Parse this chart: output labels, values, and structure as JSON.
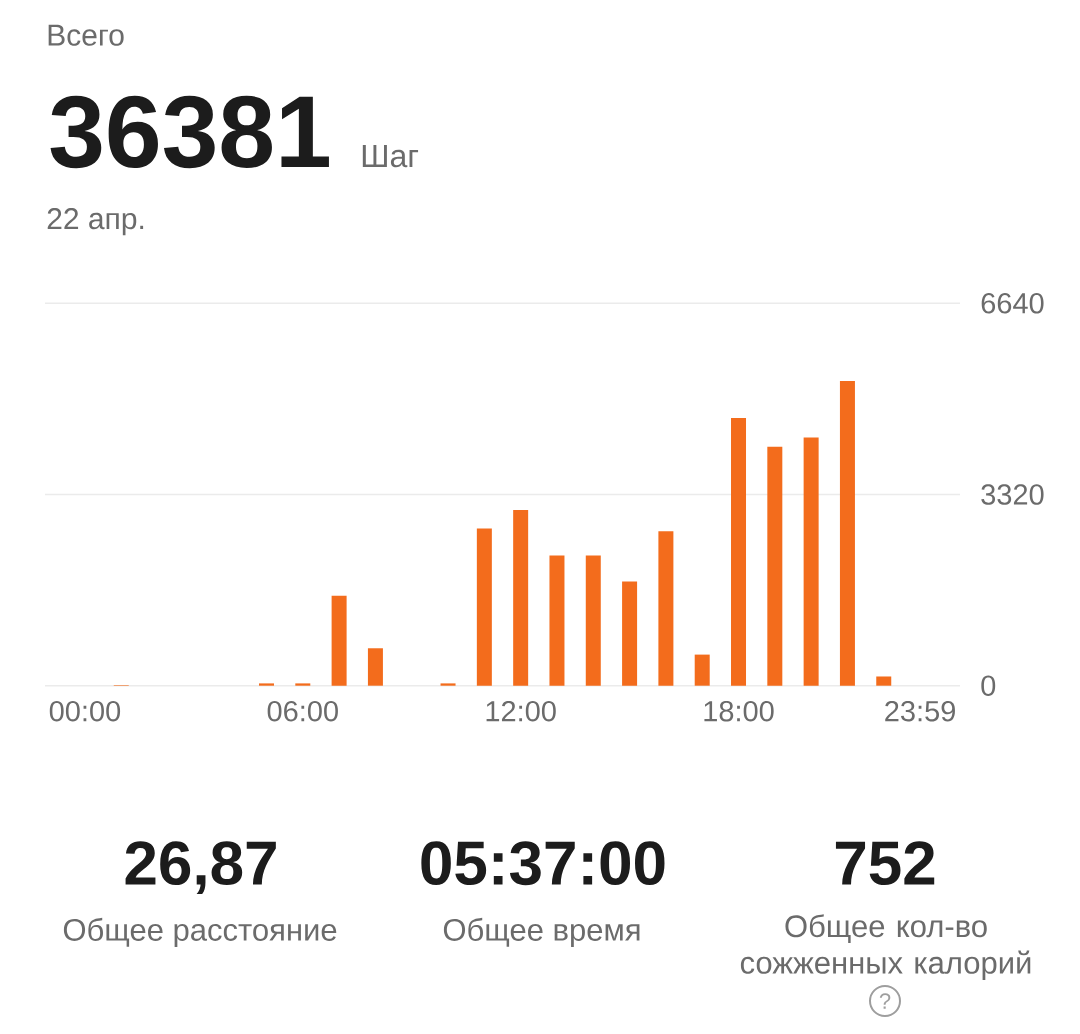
{
  "chart_data": {
    "type": "bar",
    "title": "Всего",
    "subtitle": "22 апр.",
    "categories": [
      "00:00",
      null,
      null,
      null,
      null,
      null,
      "06:00",
      null,
      null,
      null,
      null,
      null,
      "12:00",
      null,
      null,
      null,
      null,
      null,
      "18:00",
      null,
      null,
      null,
      null,
      "23:59"
    ],
    "values": [
      0,
      10,
      0,
      0,
      0,
      40,
      40,
      1560,
      650,
      0,
      40,
      2730,
      3050,
      2260,
      2260,
      1810,
      2680,
      540,
      4650,
      4150,
      4310,
      5290,
      160,
      0
    ],
    "color": "#f36c1c",
    "ylim": [
      0,
      6640
    ],
    "yticks": [
      0,
      3320,
      6640
    ],
    "grid": "y",
    "annotations": [
      "36381",
      "Шаг",
      "26,87",
      "Общее расстояние",
      "05:37:00",
      "Общее время",
      "752",
      "Общее кол-во сожженных калорий",
      "?"
    ]
  }
}
